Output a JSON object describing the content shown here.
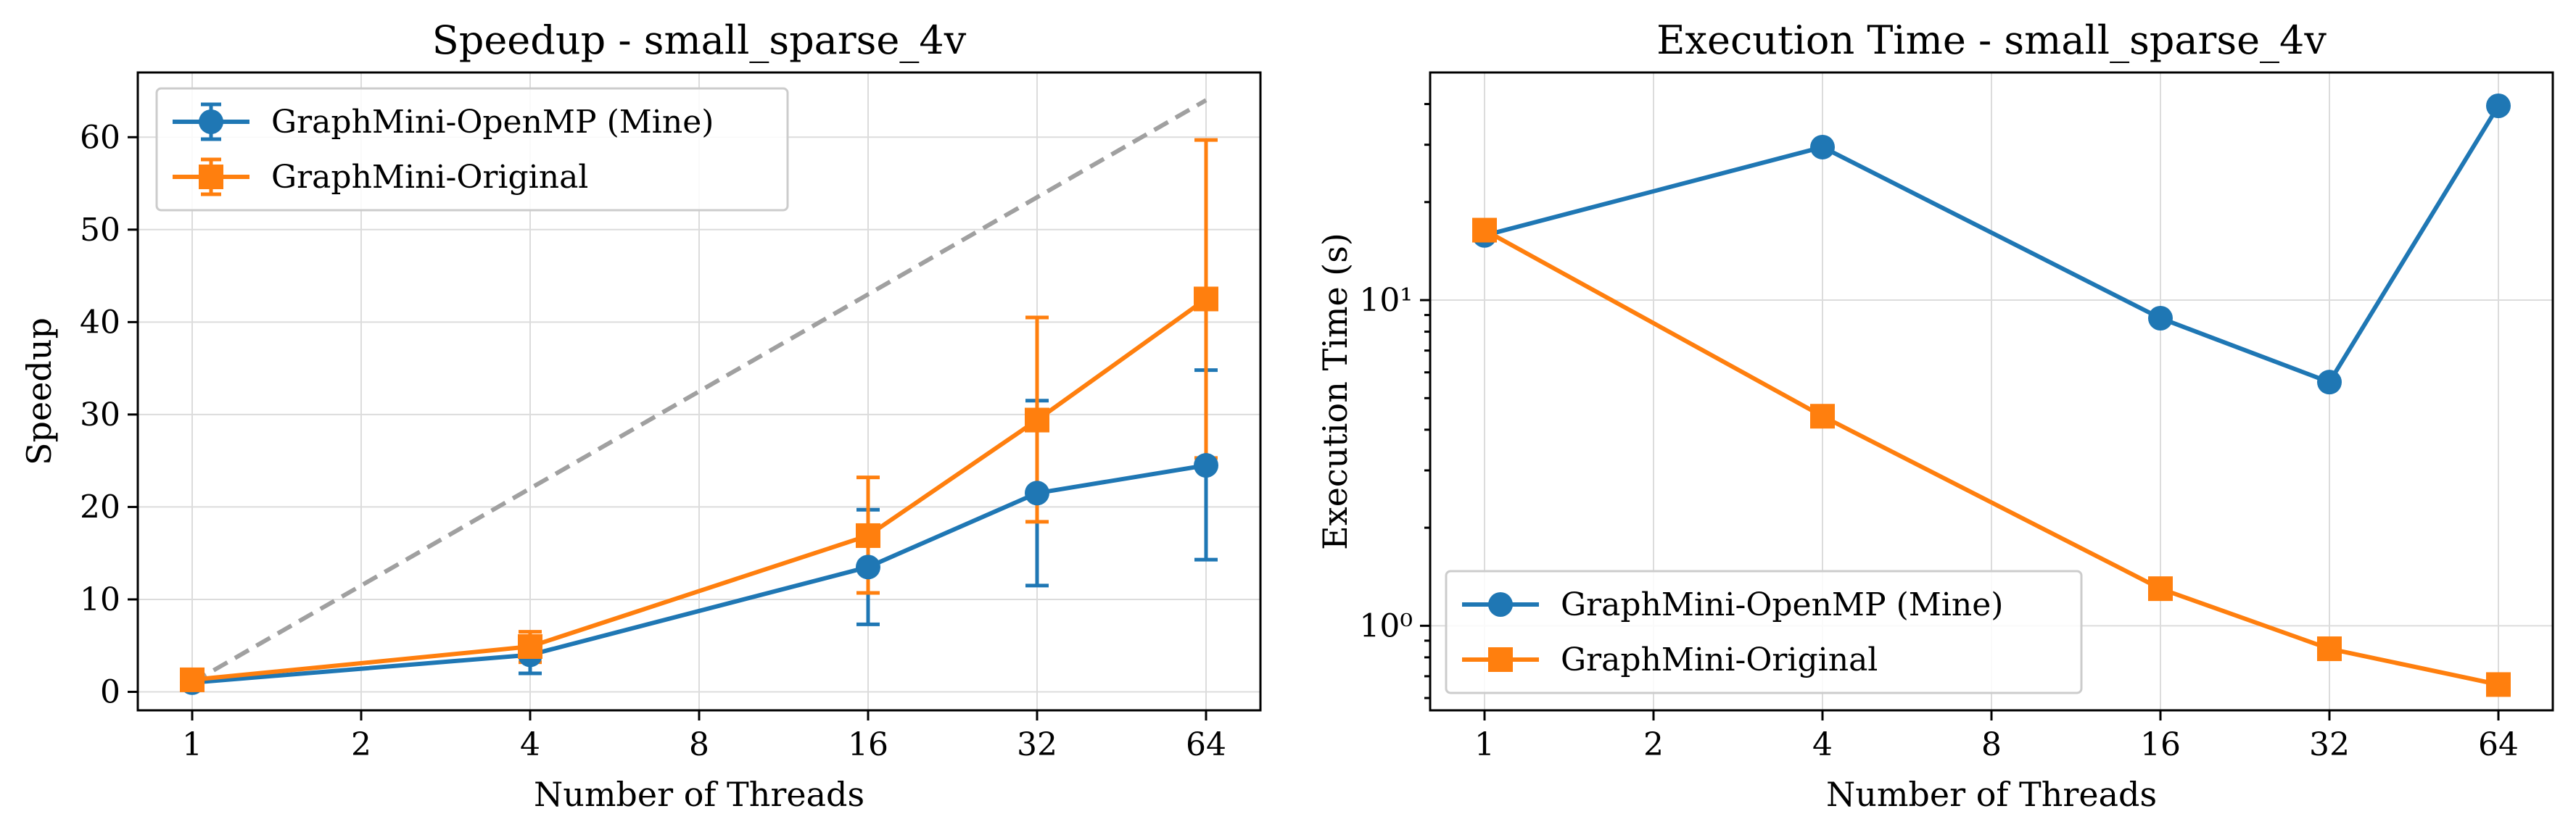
{
  "chart_data": [
    {
      "type": "line",
      "title": "Speedup - small_sparse_4v",
      "xlabel": "Number of Threads",
      "ylabel": "Speedup",
      "x_scale": "log2",
      "x": [
        1,
        4,
        16,
        32,
        64
      ],
      "x_ticks": [
        1,
        2,
        4,
        8,
        16,
        32,
        64
      ],
      "x_tick_labels": [
        "1",
        "2",
        "4",
        "8",
        "16",
        "32",
        "64"
      ],
      "xlim": [
        0.8,
        80
      ],
      "ylim": [
        -2,
        67
      ],
      "y_ticks": [
        0,
        10,
        20,
        30,
        40,
        50,
        60
      ],
      "y_tick_labels": [
        "0",
        "10",
        "20",
        "30",
        "40",
        "50",
        "60"
      ],
      "grid": true,
      "legend_position": "top-left",
      "series": [
        {
          "name": "GraphMini-OpenMP (Mine)",
          "color": "#1f77b4",
          "marker": "circle",
          "values": [
            1.0,
            4.0,
            13.5,
            21.5,
            24.5
          ],
          "err_low": [
            0.9,
            2.0,
            7.3,
            11.5,
            14.3
          ],
          "err_high": [
            1.1,
            5.6,
            19.7,
            31.5,
            34.8
          ]
        },
        {
          "name": "GraphMini-Original",
          "color": "#ff7f0e",
          "marker": "square",
          "values": [
            1.3,
            4.9,
            16.9,
            29.4,
            42.5
          ],
          "err_low": [
            1.1,
            3.2,
            10.7,
            18.4,
            25.3
          ],
          "err_high": [
            1.5,
            6.5,
            23.2,
            40.5,
            59.7
          ]
        }
      ],
      "reference_line": {
        "style": "dashed",
        "color": "#a0a0a0",
        "x": [
          1,
          64
        ],
        "y": [
          1,
          64
        ]
      }
    },
    {
      "type": "line",
      "title": "Execution Time - small_sparse_4v",
      "xlabel": "Number of Threads",
      "ylabel": "Execution Time (s)",
      "x_scale": "log2",
      "y_scale": "log10",
      "x": [
        1,
        4,
        16,
        32,
        64
      ],
      "x_ticks": [
        1,
        2,
        4,
        8,
        16,
        32,
        64
      ],
      "x_tick_labels": [
        "1",
        "2",
        "4",
        "8",
        "16",
        "32",
        "64"
      ],
      "xlim": [
        0.8,
        80
      ],
      "ylim": [
        0.55,
        50
      ],
      "y_ticks": [
        1,
        10
      ],
      "y_tick_labels": [
        "10⁰",
        "10¹"
      ],
      "grid": true,
      "legend_position": "bottom-left",
      "series": [
        {
          "name": "GraphMini-OpenMP (Mine)",
          "color": "#1f77b4",
          "marker": "circle",
          "values": [
            15.8,
            29.5,
            8.8,
            5.6,
            39.5
          ]
        },
        {
          "name": "GraphMini-Original",
          "color": "#ff7f0e",
          "marker": "square",
          "values": [
            16.4,
            4.4,
            1.3,
            0.85,
            0.66
          ]
        }
      ]
    }
  ]
}
